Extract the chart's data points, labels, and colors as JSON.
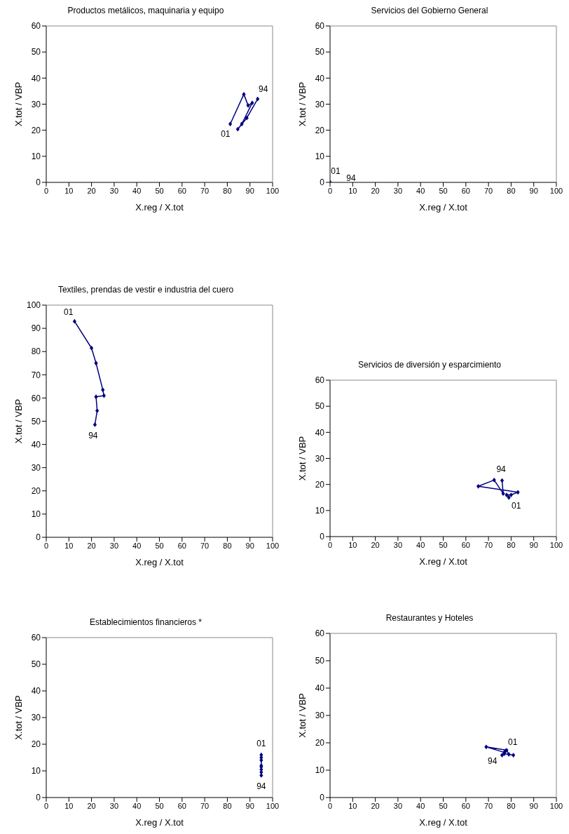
{
  "chart_data": [
    {
      "type": "line",
      "title": "Productos metálicos, maquinaria y equipo",
      "xlabel": "X.reg / X.tot",
      "ylabel": "X.tot / VBP",
      "marker": "diamond",
      "grid": false,
      "xlim": [
        0,
        100
      ],
      "xticks": [
        0,
        10,
        20,
        30,
        40,
        50,
        60,
        70,
        80,
        90,
        100
      ],
      "ylim": [
        0,
        60
      ],
      "yticks": [
        0,
        10,
        20,
        30,
        40,
        50,
        60
      ],
      "series": [
        {
          "color": "#000080",
          "x": [
            93.4,
            88.6,
            84.6,
            86.4,
            91,
            89.2,
            87.3,
            81.3
          ],
          "values": [
            32,
            24.7,
            20.4,
            22.4,
            30.5,
            29.5,
            33.8,
            22.4
          ]
        }
      ],
      "annotations": [
        {
          "text": "01",
          "x": 81.3,
          "y": 22.4
        },
        {
          "text": "94",
          "x": 93.4,
          "y": 32
        }
      ]
    },
    {
      "type": "scatter",
      "title": "Servicios del Gobierno General",
      "xlabel": "X.reg / X.tot",
      "ylabel": "X.tot / VBP",
      "marker": "diamond",
      "grid": false,
      "xlim": [
        0,
        100
      ],
      "xticks": [
        0,
        10,
        20,
        30,
        40,
        50,
        60,
        70,
        80,
        90,
        100
      ],
      "ylim": [
        0,
        60
      ],
      "yticks": [
        0,
        10,
        20,
        30,
        40,
        50,
        60
      ],
      "series": [
        {
          "color": "#000080",
          "x": [
            0
          ],
          "values": [
            0
          ]
        }
      ],
      "annotations": [
        {
          "text": "01",
          "x": 0,
          "y": 0
        },
        {
          "text": "94",
          "x": 0,
          "y": 0
        }
      ]
    },
    {
      "type": "line",
      "title": "Textiles, prendas de vestir  e industria del cuero",
      "xlabel": "X.reg / X.tot",
      "ylabel": "X.tot / VBP",
      "marker": "diamond",
      "grid": false,
      "xlim": [
        0,
        100
      ],
      "xticks": [
        0,
        10,
        20,
        30,
        40,
        50,
        60,
        70,
        80,
        90,
        100
      ],
      "ylim": [
        0,
        100
      ],
      "yticks": [
        0,
        10,
        20,
        30,
        40,
        50,
        60,
        70,
        80,
        90,
        100
      ],
      "series": [
        {
          "color": "#000080",
          "x": [
            21.5,
            22.5,
            22,
            25.5,
            25,
            22,
            20,
            12.5
          ],
          "values": [
            48.5,
            54.5,
            60.5,
            61,
            63.5,
            75,
            81.5,
            93
          ]
        }
      ],
      "annotations": [
        {
          "text": "01",
          "x": 12.5,
          "y": 93
        },
        {
          "text": "94",
          "x": 21.5,
          "y": 48.5
        }
      ]
    },
    {
      "type": "line",
      "title": "Servicios de diversión y esparcimiento",
      "xlabel": "X.reg / X.tot",
      "ylabel": "X.tot / VBP",
      "marker": "diamond",
      "grid": false,
      "xlim": [
        0,
        100
      ],
      "xticks": [
        0,
        10,
        20,
        30,
        40,
        50,
        60,
        70,
        80,
        90,
        100
      ],
      "ylim": [
        0,
        60
      ],
      "yticks": [
        0,
        10,
        20,
        30,
        40,
        50,
        60
      ],
      "series": [
        {
          "color": "#000080",
          "x": [
            76,
            76.5,
            72.5,
            65.5,
            83,
            80,
            78,
            79
          ],
          "values": [
            21.5,
            16.5,
            21.7,
            19.3,
            17,
            16,
            16,
            15
          ]
        }
      ],
      "annotations": [
        {
          "text": "94",
          "x": 76,
          "y": 21.5
        },
        {
          "text": "01",
          "x": 79,
          "y": 15
        }
      ]
    },
    {
      "type": "line",
      "title": "Establecimientos financieros *",
      "xlabel": "X.reg / X.tot",
      "ylabel": "X.tot / VBP",
      "marker": "diamond",
      "grid": false,
      "xlim": [
        0,
        100
      ],
      "xticks": [
        0,
        10,
        20,
        30,
        40,
        50,
        60,
        70,
        80,
        90,
        100
      ],
      "ylim": [
        0,
        60
      ],
      "yticks": [
        0,
        10,
        20,
        30,
        40,
        50,
        60
      ],
      "series": [
        {
          "color": "#000080",
          "x": [
            95,
            95,
            95,
            95,
            95,
            95,
            95,
            95
          ],
          "values": [
            8.3,
            9.5,
            10.5,
            11.5,
            12,
            14,
            15,
            16
          ]
        }
      ],
      "annotations": [
        {
          "text": "01",
          "x": 95,
          "y": 16
        },
        {
          "text": "94",
          "x": 95,
          "y": 8.3
        }
      ]
    },
    {
      "type": "line",
      "title": "Restaurantes y Hoteles",
      "xlabel": "X.reg / X.tot",
      "ylabel": "X.tot / VBP",
      "marker": "diamond",
      "grid": false,
      "xlim": [
        0,
        100
      ],
      "xticks": [
        0,
        10,
        20,
        30,
        40,
        50,
        60,
        70,
        80,
        90,
        100
      ],
      "ylim": [
        0,
        60
      ],
      "yticks": [
        0,
        10,
        20,
        30,
        40,
        50,
        60
      ],
      "series": [
        {
          "color": "#000080",
          "x": [
            76,
            77,
            81,
            79,
            78,
            69,
            77,
            77.5
          ],
          "values": [
            15.5,
            16,
            15.5,
            15.8,
            17.3,
            18.5,
            16.5,
            17
          ]
        }
      ],
      "annotations": [
        {
          "text": "01",
          "x": 77.5,
          "y": 17
        },
        {
          "text": "94",
          "x": 76,
          "y": 15.5
        }
      ]
    }
  ]
}
